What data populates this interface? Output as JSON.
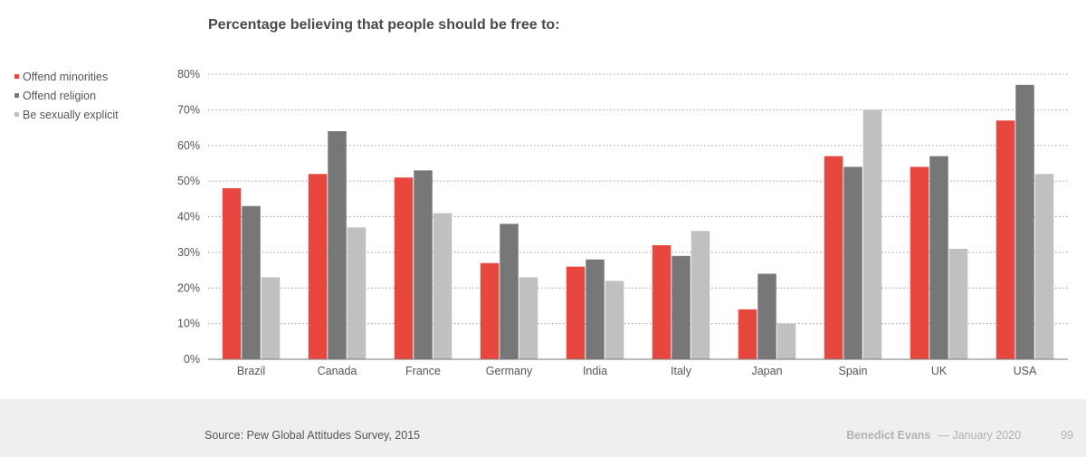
{
  "chart_data": {
    "type": "bar",
    "title": "Percentage believing that people should be free to:",
    "categories": [
      "Brazil",
      "Canada",
      "France",
      "Germany",
      "India",
      "Italy",
      "Japan",
      "Spain",
      "UK",
      "USA"
    ],
    "series": [
      {
        "name": "Offend minorities",
        "color": "#e8473f",
        "values": [
          48,
          52,
          51,
          27,
          26,
          32,
          14,
          57,
          54,
          67
        ]
      },
      {
        "name": "Offend religion",
        "color": "#777777",
        "values": [
          43,
          64,
          53,
          38,
          28,
          29,
          24,
          54,
          57,
          77
        ]
      },
      {
        "name": "Be sexually explicit",
        "color": "#c0c0c0",
        "values": [
          23,
          37,
          41,
          23,
          22,
          36,
          10,
          70,
          31,
          52
        ]
      }
    ],
    "ylim": [
      0,
      80
    ],
    "yticks": [
      0,
      10,
      20,
      30,
      40,
      50,
      60,
      70,
      80
    ],
    "ytick_labels": [
      "0%",
      "10%",
      "20%",
      "30%",
      "40%",
      "50%",
      "60%",
      "70%",
      "80%"
    ],
    "grid": true,
    "legend_position": "top-left"
  },
  "footer": {
    "source": "Source: Pew Global Attitudes Survey, 2015",
    "author": "Benedict Evans",
    "date": "— January 2020",
    "page": "99"
  }
}
